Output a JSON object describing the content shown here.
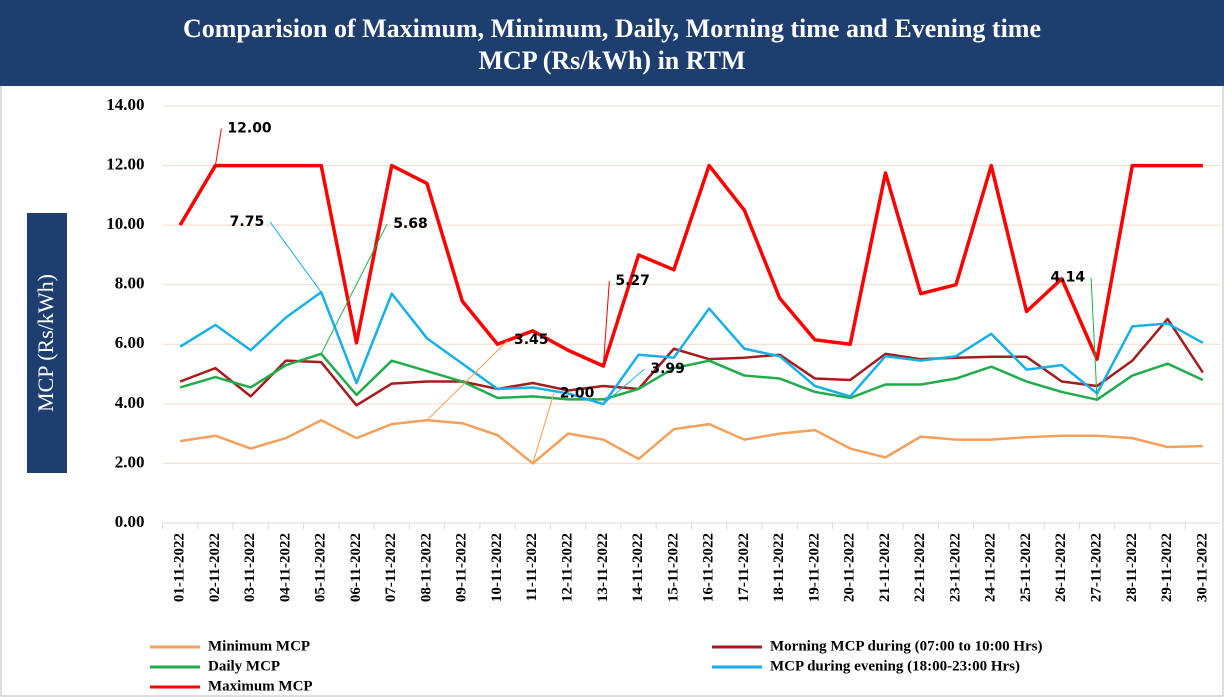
{
  "chart_data": {
    "type": "line",
    "title": [
      "Comparision of Maximum, Minimum, Daily, Morning time and  Evening time",
      "MCP (Rs/kWh) in RTM"
    ],
    "y_label": "MCP (Rs/kWh)",
    "categories": [
      "01-11-2022",
      "02-11-2022",
      "03-11-2022",
      "04-11-2022",
      "05-11-2022",
      "06-11-2022",
      "07-11-2022",
      "08-11-2022",
      "09-11-2022",
      "10-11-2022",
      "11-11-2022",
      "12-11-2022",
      "13-11-2022",
      "14-11-2022",
      "15-11-2022",
      "16-11-2022",
      "17-11-2022",
      "18-11-2022",
      "19-11-2022",
      "20-11-2022",
      "21-11-2022",
      "22-11-2022",
      "23-11-2022",
      "24-11-2022",
      "25-11-2022",
      "26-11-2022",
      "27-11-2022",
      "28-11-2022",
      "29-11-2022",
      "30-11-2022"
    ],
    "ylim": [
      0,
      14
    ],
    "yticks": [
      {
        "value": 0,
        "label": "0.00"
      },
      {
        "value": 2,
        "label": "2.00"
      },
      {
        "value": 4,
        "label": "4.00"
      },
      {
        "value": 6,
        "label": "6.00"
      },
      {
        "value": 8,
        "label": "8.00"
      },
      {
        "value": 10,
        "label": "10.00"
      },
      {
        "value": 12,
        "label": "12.00"
      },
      {
        "value": 14,
        "label": "14.00"
      }
    ],
    "grid": true,
    "series": [
      {
        "name": "Minimum MCP",
        "color": "#f5a05a",
        "values": [
          2.75,
          2.93,
          2.5,
          2.85,
          3.45,
          2.85,
          3.32,
          3.45,
          3.35,
          2.95,
          2.0,
          3.0,
          2.8,
          2.15,
          3.15,
          3.32,
          2.8,
          3.0,
          3.12,
          2.5,
          2.2,
          2.9,
          2.8,
          2.8,
          2.88,
          2.93,
          2.93,
          2.85,
          2.55,
          2.58
        ],
        "value_labels": [
          null,
          null,
          null,
          null,
          null,
          null,
          null,
          "3.45",
          null,
          null,
          "2.00",
          null,
          null,
          null,
          null,
          null,
          null,
          null,
          null,
          null,
          null,
          null,
          null,
          null,
          null,
          null,
          null,
          null,
          null,
          null
        ]
      },
      {
        "name": "Morning MCP  during (07:00 to 10:00 Hrs)",
        "color": "#a51c1c",
        "values": [
          4.75,
          5.2,
          4.25,
          5.45,
          5.4,
          3.95,
          4.68,
          4.75,
          4.75,
          4.5,
          4.7,
          4.45,
          4.6,
          4.5,
          5.85,
          5.5,
          5.55,
          5.65,
          4.85,
          4.8,
          5.68,
          5.5,
          5.55,
          5.58,
          5.58,
          4.75,
          4.6,
          5.45,
          6.85,
          5.05
        ]
      },
      {
        "name": "Daily MCP",
        "color": "#1fad4b",
        "values": [
          4.55,
          4.9,
          4.55,
          5.3,
          5.68,
          4.3,
          5.45,
          5.1,
          4.75,
          4.2,
          4.25,
          4.15,
          4.15,
          4.5,
          5.2,
          5.45,
          4.95,
          4.85,
          4.4,
          4.2,
          4.65,
          4.65,
          4.85,
          5.25,
          4.75,
          4.4,
          4.14,
          4.95,
          5.35,
          4.8
        ],
        "value_labels": [
          null,
          null,
          null,
          null,
          "5.68",
          null,
          null,
          null,
          null,
          null,
          null,
          null,
          null,
          null,
          null,
          null,
          null,
          null,
          null,
          null,
          null,
          null,
          null,
          null,
          null,
          null,
          "4.14",
          null,
          null,
          null
        ]
      },
      {
        "name": "MCP  during evening (18:00-23:00 Hrs)",
        "color": "#16b0e8",
        "values": [
          5.92,
          6.65,
          5.8,
          6.9,
          7.75,
          4.7,
          7.7,
          6.2,
          5.35,
          4.5,
          4.55,
          4.35,
          3.99,
          5.65,
          5.55,
          7.2,
          5.85,
          5.6,
          4.6,
          4.25,
          5.6,
          5.45,
          5.6,
          6.35,
          5.15,
          5.3,
          4.35,
          6.6,
          6.7,
          6.05
        ],
        "value_labels": [
          null,
          null,
          null,
          null,
          "7.75",
          null,
          null,
          null,
          null,
          null,
          null,
          null,
          "3.99",
          null,
          null,
          null,
          null,
          null,
          null,
          null,
          null,
          null,
          null,
          null,
          null,
          null,
          null,
          null,
          null,
          null
        ]
      },
      {
        "name": "Maximum MCP",
        "color": "#ff0000",
        "values": [
          10.0,
          12.0,
          12.0,
          12.0,
          12.0,
          6.05,
          12.0,
          11.4,
          7.45,
          6.0,
          6.45,
          5.8,
          5.27,
          9.0,
          8.5,
          12.0,
          10.5,
          7.55,
          6.15,
          6.0,
          11.75,
          7.7,
          8.0,
          12.0,
          7.1,
          8.2,
          5.5,
          12.0,
          12.0,
          12.0
        ],
        "value_labels": [
          null,
          "12.00",
          null,
          null,
          null,
          null,
          null,
          null,
          null,
          null,
          null,
          null,
          "5.27",
          null,
          null,
          null,
          null,
          null,
          null,
          null,
          null,
          null,
          null,
          null,
          null,
          null,
          null,
          null,
          null,
          null
        ]
      }
    ]
  }
}
